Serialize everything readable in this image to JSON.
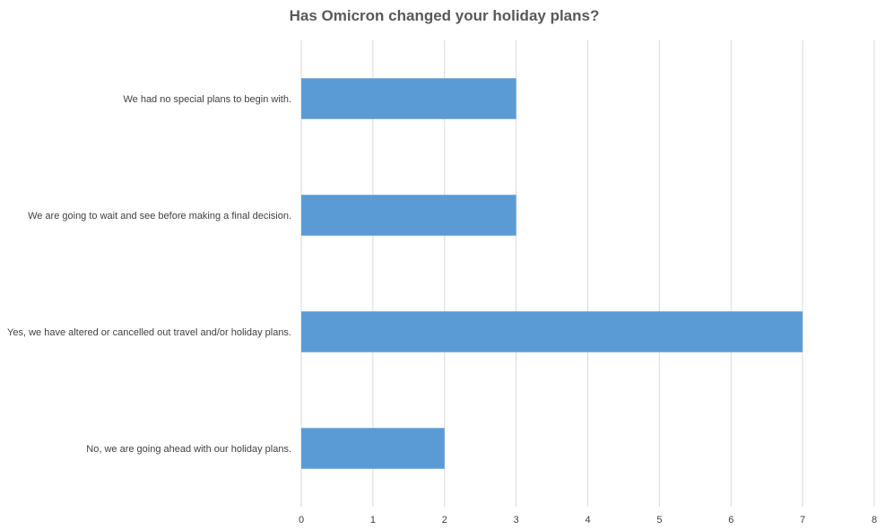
{
  "chart_data": {
    "type": "bar",
    "orientation": "horizontal",
    "title": "Has Omicron changed your holiday plans?",
    "categories": [
      "We had no special plans to begin with.",
      "We are going to wait and see before making a final decision.",
      "Yes, we have altered or cancelled out travel and/or holiday plans.",
      "No, we are going ahead with our holiday plans."
    ],
    "values": [
      3,
      3,
      7,
      2
    ],
    "xlim": [
      0,
      8
    ],
    "x_ticks": [
      "0",
      "1",
      "2",
      "3",
      "4",
      "5",
      "6",
      "7",
      "8"
    ],
    "grid": true,
    "bar_color": "#5b9bd5",
    "grid_color": "#d9d9d9"
  }
}
